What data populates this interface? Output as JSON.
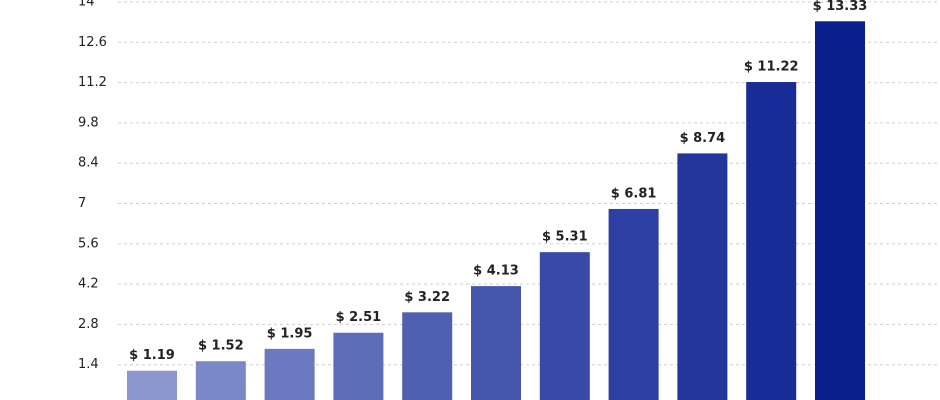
{
  "chart_data": {
    "type": "bar",
    "values": [
      1.19,
      1.52,
      1.95,
      2.51,
      3.22,
      4.13,
      5.31,
      6.81,
      8.74,
      11.22,
      13.33
    ],
    "value_labels": [
      "$ 1.19",
      "$ 1.52",
      "$ 1.95",
      "$ 2.51",
      "$ 3.22",
      "$ 4.13",
      "$ 5.31",
      "$ 6.81",
      "$ 8.74",
      "$ 11.22",
      "$ 13.33"
    ],
    "colors": [
      "#8c97cf",
      "#7a87c8",
      "#6a79c0",
      "#5d6db8",
      "#4f60b2",
      "#4556ab",
      "#3849a8",
      "#2d3fa3",
      "#22369c",
      "#172c97",
      "#0a1f8c"
    ],
    "ylim": [
      0,
      14
    ],
    "yticks": [
      1.4,
      2.8,
      4.2,
      5.6,
      7,
      8.4,
      9.8,
      11.2,
      12.6,
      14
    ],
    "grid": true
  }
}
